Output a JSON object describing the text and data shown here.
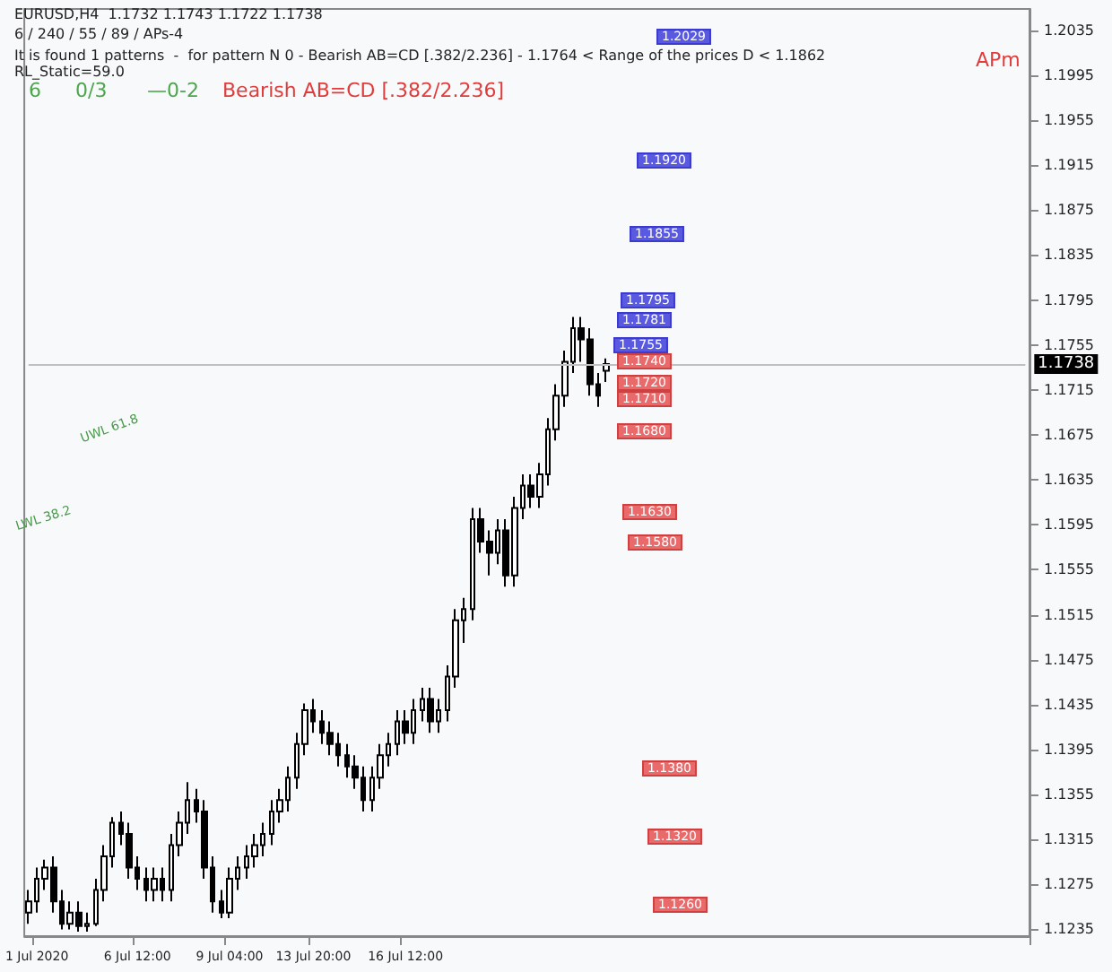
{
  "chart_data": {
    "type": "candlestick",
    "title": "EURUSD,H4  1.1732 1.1743 1.1722 1.1738",
    "subtitle": "6 / 240 / 55 / 89 / APs-4",
    "categories": [
      null,
      "1 Jul 2020",
      null,
      null,
      null,
      null,
      null,
      null,
      null,
      null,
      null,
      null,
      null,
      "6 Jul 12:00",
      null,
      null,
      null,
      null,
      null,
      null,
      null,
      null,
      null,
      null,
      "9 Jul 04:00",
      null,
      null,
      null,
      null,
      null,
      null,
      null,
      null,
      null,
      "13 Jul 20:00",
      null,
      null,
      null,
      null,
      null,
      null,
      null,
      null,
      null,
      null,
      "16 Jul 12:00",
      null,
      null,
      null,
      null,
      null,
      null,
      null,
      null,
      null,
      null,
      null,
      null,
      null,
      null,
      null,
      null,
      null,
      null,
      null,
      null,
      null,
      null,
      null,
      null,
      null,
      null,
      null,
      null,
      null,
      null,
      null,
      null,
      null,
      null,
      null,
      null,
      null,
      null,
      null,
      null,
      null,
      null,
      null,
      null,
      null,
      null,
      null,
      null,
      null,
      null,
      null,
      null,
      null,
      null,
      null,
      null,
      null,
      null,
      null,
      null,
      null,
      null,
      null,
      null,
      null,
      null,
      null,
      null,
      null,
      null,
      null,
      null,
      null,
      null
    ],
    "ohlc": [
      [
        1.125,
        1.127,
        1.124,
        1.126
      ],
      [
        1.126,
        1.129,
        1.125,
        1.128
      ],
      [
        1.128,
        1.1297,
        1.127,
        1.129
      ],
      [
        1.129,
        1.13,
        1.125,
        1.126
      ],
      [
        1.126,
        1.127,
        1.1235,
        1.124
      ],
      [
        1.124,
        1.126,
        1.1235,
        1.125
      ],
      [
        1.125,
        1.126,
        1.1233,
        1.1238
      ],
      [
        1.1238,
        1.125,
        1.1233,
        1.124
      ],
      [
        1.124,
        1.128,
        1.1238,
        1.127
      ],
      [
        1.127,
        1.131,
        1.126,
        1.13
      ],
      [
        1.13,
        1.1335,
        1.129,
        1.133
      ],
      [
        1.133,
        1.134,
        1.131,
        1.132
      ],
      [
        1.132,
        1.133,
        1.128,
        1.129
      ],
      [
        1.129,
        1.13,
        1.127,
        1.128
      ],
      [
        1.128,
        1.129,
        1.126,
        1.127
      ],
      [
        1.127,
        1.129,
        1.126,
        1.128
      ],
      [
        1.128,
        1.129,
        1.126,
        1.127
      ],
      [
        1.127,
        1.132,
        1.126,
        1.131
      ],
      [
        1.131,
        1.134,
        1.13,
        1.133
      ],
      [
        1.133,
        1.1366,
        1.132,
        1.135
      ],
      [
        1.135,
        1.136,
        1.133,
        1.134
      ],
      [
        1.134,
        1.135,
        1.128,
        1.129
      ],
      [
        1.129,
        1.13,
        1.125,
        1.126
      ],
      [
        1.126,
        1.127,
        1.1245,
        1.125
      ],
      [
        1.125,
        1.129,
        1.1245,
        1.128
      ],
      [
        1.128,
        1.13,
        1.127,
        1.129
      ],
      [
        1.129,
        1.131,
        1.128,
        1.13
      ],
      [
        1.13,
        1.132,
        1.129,
        1.131
      ],
      [
        1.131,
        1.133,
        1.13,
        1.132
      ],
      [
        1.132,
        1.135,
        1.131,
        1.134
      ],
      [
        1.134,
        1.136,
        1.133,
        1.135
      ],
      [
        1.135,
        1.138,
        1.134,
        1.137
      ],
      [
        1.137,
        1.141,
        1.136,
        1.14
      ],
      [
        1.14,
        1.1436,
        1.139,
        1.143
      ],
      [
        1.143,
        1.144,
        1.141,
        1.142
      ],
      [
        1.142,
        1.143,
        1.14,
        1.141
      ],
      [
        1.141,
        1.142,
        1.139,
        1.14
      ],
      [
        1.14,
        1.141,
        1.138,
        1.139
      ],
      [
        1.139,
        1.14,
        1.137,
        1.138
      ],
      [
        1.138,
        1.139,
        1.136,
        1.137
      ],
      [
        1.137,
        1.138,
        1.134,
        1.135
      ],
      [
        1.135,
        1.138,
        1.134,
        1.137
      ],
      [
        1.137,
        1.14,
        1.136,
        1.139
      ],
      [
        1.139,
        1.141,
        1.138,
        1.14
      ],
      [
        1.14,
        1.143,
        1.139,
        1.142
      ],
      [
        1.142,
        1.143,
        1.14,
        1.141
      ],
      [
        1.141,
        1.144,
        1.14,
        1.143
      ],
      [
        1.143,
        1.145,
        1.142,
        1.144
      ],
      [
        1.144,
        1.145,
        1.141,
        1.142
      ],
      [
        1.142,
        1.144,
        1.141,
        1.143
      ],
      [
        1.143,
        1.147,
        1.142,
        1.146
      ],
      [
        1.146,
        1.152,
        1.145,
        1.151
      ],
      [
        1.151,
        1.153,
        1.149,
        1.152
      ],
      [
        1.152,
        1.161,
        1.151,
        1.16
      ],
      [
        1.16,
        1.161,
        1.157,
        1.158
      ],
      [
        1.158,
        1.159,
        1.155,
        1.157
      ],
      [
        1.157,
        1.16,
        1.156,
        1.159
      ],
      [
        1.159,
        1.16,
        1.154,
        1.155
      ],
      [
        1.155,
        1.162,
        1.154,
        1.161
      ],
      [
        1.161,
        1.164,
        1.16,
        1.163
      ],
      [
        1.163,
        1.164,
        1.161,
        1.162
      ],
      [
        1.162,
        1.165,
        1.161,
        1.164
      ],
      [
        1.164,
        1.169,
        1.163,
        1.168
      ],
      [
        1.168,
        1.172,
        1.167,
        1.171
      ],
      [
        1.171,
        1.175,
        1.17,
        1.174
      ],
      [
        1.174,
        1.178,
        1.173,
        1.177
      ],
      [
        1.177,
        1.178,
        1.174,
        1.176
      ],
      [
        1.176,
        1.177,
        1.171,
        1.172
      ],
      [
        1.172,
        1.173,
        1.17,
        1.171
      ],
      [
        1.1732,
        1.1743,
        1.1722,
        1.1738
      ],
      null,
      null,
      null,
      null,
      null,
      null,
      null,
      null,
      null,
      null,
      null,
      null,
      null,
      null,
      null,
      null,
      null,
      null,
      null,
      null,
      null,
      null,
      null,
      null,
      null,
      null,
      null,
      null,
      null,
      null,
      null,
      null,
      null,
      null,
      null,
      null,
      null,
      null,
      null,
      null,
      null,
      null,
      null,
      null,
      null,
      null,
      null,
      null,
      null,
      null
    ],
    "ylim": [
      1.1229,
      1.2054
    ],
    "yticks": [
      1.1235,
      1.1275,
      1.1315,
      1.1355,
      1.1395,
      1.1435,
      1.1475,
      1.1515,
      1.1555,
      1.1595,
      1.1635,
      1.1675,
      1.1715,
      1.1755,
      1.1795,
      1.1835,
      1.1875,
      1.1915,
      1.1955,
      1.1995,
      1.2035
    ],
    "grid": false,
    "ref_lines": [
      {
        "axis": "y",
        "value": 1.1738,
        "label": "1.1738",
        "color": "#c0c0c0"
      }
    ],
    "annotations": [
      "It is found 1 patterns  -  for pattern N 0 - Bearish AB=CD [.382/2.236] - 1.1764 < Range of the prices D < 1.1862",
      "RL_Static=59.0",
      "6",
      "0/3",
      "—0-2",
      "Bearish AB=CD [.382/2.236]",
      "APm",
      "UWL 61.8",
      "LWL 38.2",
      "1.2029",
      "1.1920",
      "1.1855",
      "1.1795",
      "1.1781",
      "1.1755",
      "1.1740",
      "1.1720",
      "1.1710",
      "1.1680",
      "1.1630",
      "1.1580",
      "1.1380",
      "1.1320",
      "1.1260"
    ]
  }
}
